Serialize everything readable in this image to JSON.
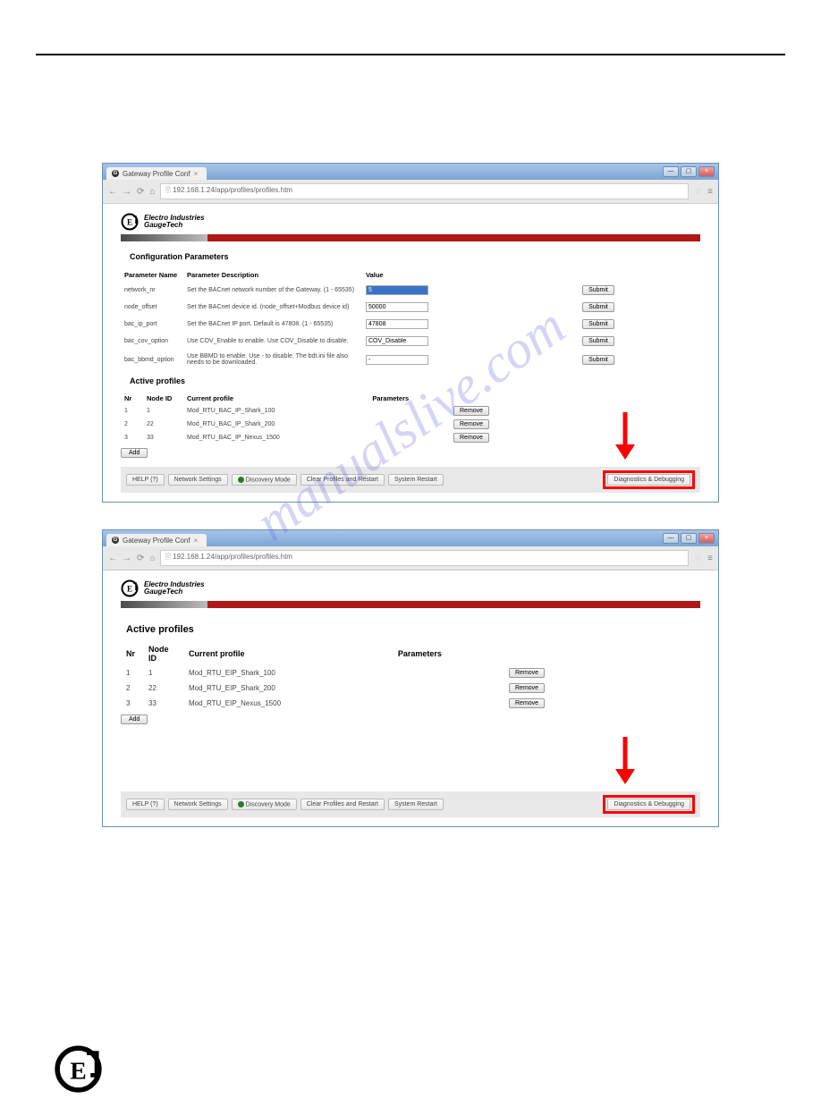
{
  "watermark": "manualslive.com",
  "browser": {
    "tab_title": "Gateway Profile Conf",
    "url": "192.168.1.24/app/profiles/profiles.htm"
  },
  "logo": {
    "line1": "Electro Industries",
    "line2": "GaugeTech"
  },
  "screenshot1": {
    "config_heading": "Configuration Parameters",
    "headers": {
      "name": "Parameter Name",
      "desc": "Parameter Description",
      "value": "Value"
    },
    "rows": [
      {
        "name": "network_nr",
        "desc": "Set the BACnet network number of the Gateway. (1 - 65535)",
        "value": "5",
        "selected": true
      },
      {
        "name": "node_offset",
        "desc": "Set the BACnet device id. (node_offset+Modbus device id)",
        "value": "50000",
        "selected": false
      },
      {
        "name": "bac_ip_port",
        "desc": "Set the BACnet IP port. Default is 47808. (1 - 65535)",
        "value": "47808",
        "selected": false
      },
      {
        "name": "bac_cov_option",
        "desc": "Use COV_Enable to enable. Use COV_Disable to disable.",
        "value": "COV_Disable",
        "selected": false
      },
      {
        "name": "bac_bbmd_option",
        "desc": "Use BBMD to enable. Use - to disable. The bdt.ini file also needs to be downloaded.",
        "value": "-",
        "selected": false
      }
    ],
    "submit_label": "Submit",
    "active_heading": "Active profiles",
    "profile_headers": {
      "nr": "Nr",
      "node": "Node ID",
      "current": "Current profile",
      "params": "Parameters"
    },
    "profiles": [
      {
        "nr": "1",
        "node": "1",
        "profile": "Mod_RTU_BAC_IP_Shark_100"
      },
      {
        "nr": "2",
        "node": "22",
        "profile": "Mod_RTU_BAC_IP_Shark_200"
      },
      {
        "nr": "3",
        "node": "33",
        "profile": "Mod_RTU_BAC_IP_Nexus_1500"
      }
    ],
    "remove_label": "Remove",
    "add_label": "Add"
  },
  "screenshot2": {
    "active_heading": "Active profiles",
    "profile_headers": {
      "nr": "Nr",
      "node": "Node ID",
      "current": "Current profile",
      "params": "Parameters"
    },
    "profiles": [
      {
        "nr": "1",
        "node": "1",
        "profile": "Mod_RTU_EIP_Shark_100"
      },
      {
        "nr": "2",
        "node": "22",
        "profile": "Mod_RTU_EIP_Shark_200"
      },
      {
        "nr": "3",
        "node": "33",
        "profile": "Mod_RTU_EIP_Nexus_1500"
      }
    ],
    "remove_label": "Remove",
    "add_label": "Add"
  },
  "toolbar": {
    "help": "HELP (?)",
    "network": "Network Settings",
    "discovery": "Discovery Mode",
    "clear": "Clear Profiles and Restart",
    "restart": "System Restart",
    "diag": "Diagnostics & Debugging"
  }
}
